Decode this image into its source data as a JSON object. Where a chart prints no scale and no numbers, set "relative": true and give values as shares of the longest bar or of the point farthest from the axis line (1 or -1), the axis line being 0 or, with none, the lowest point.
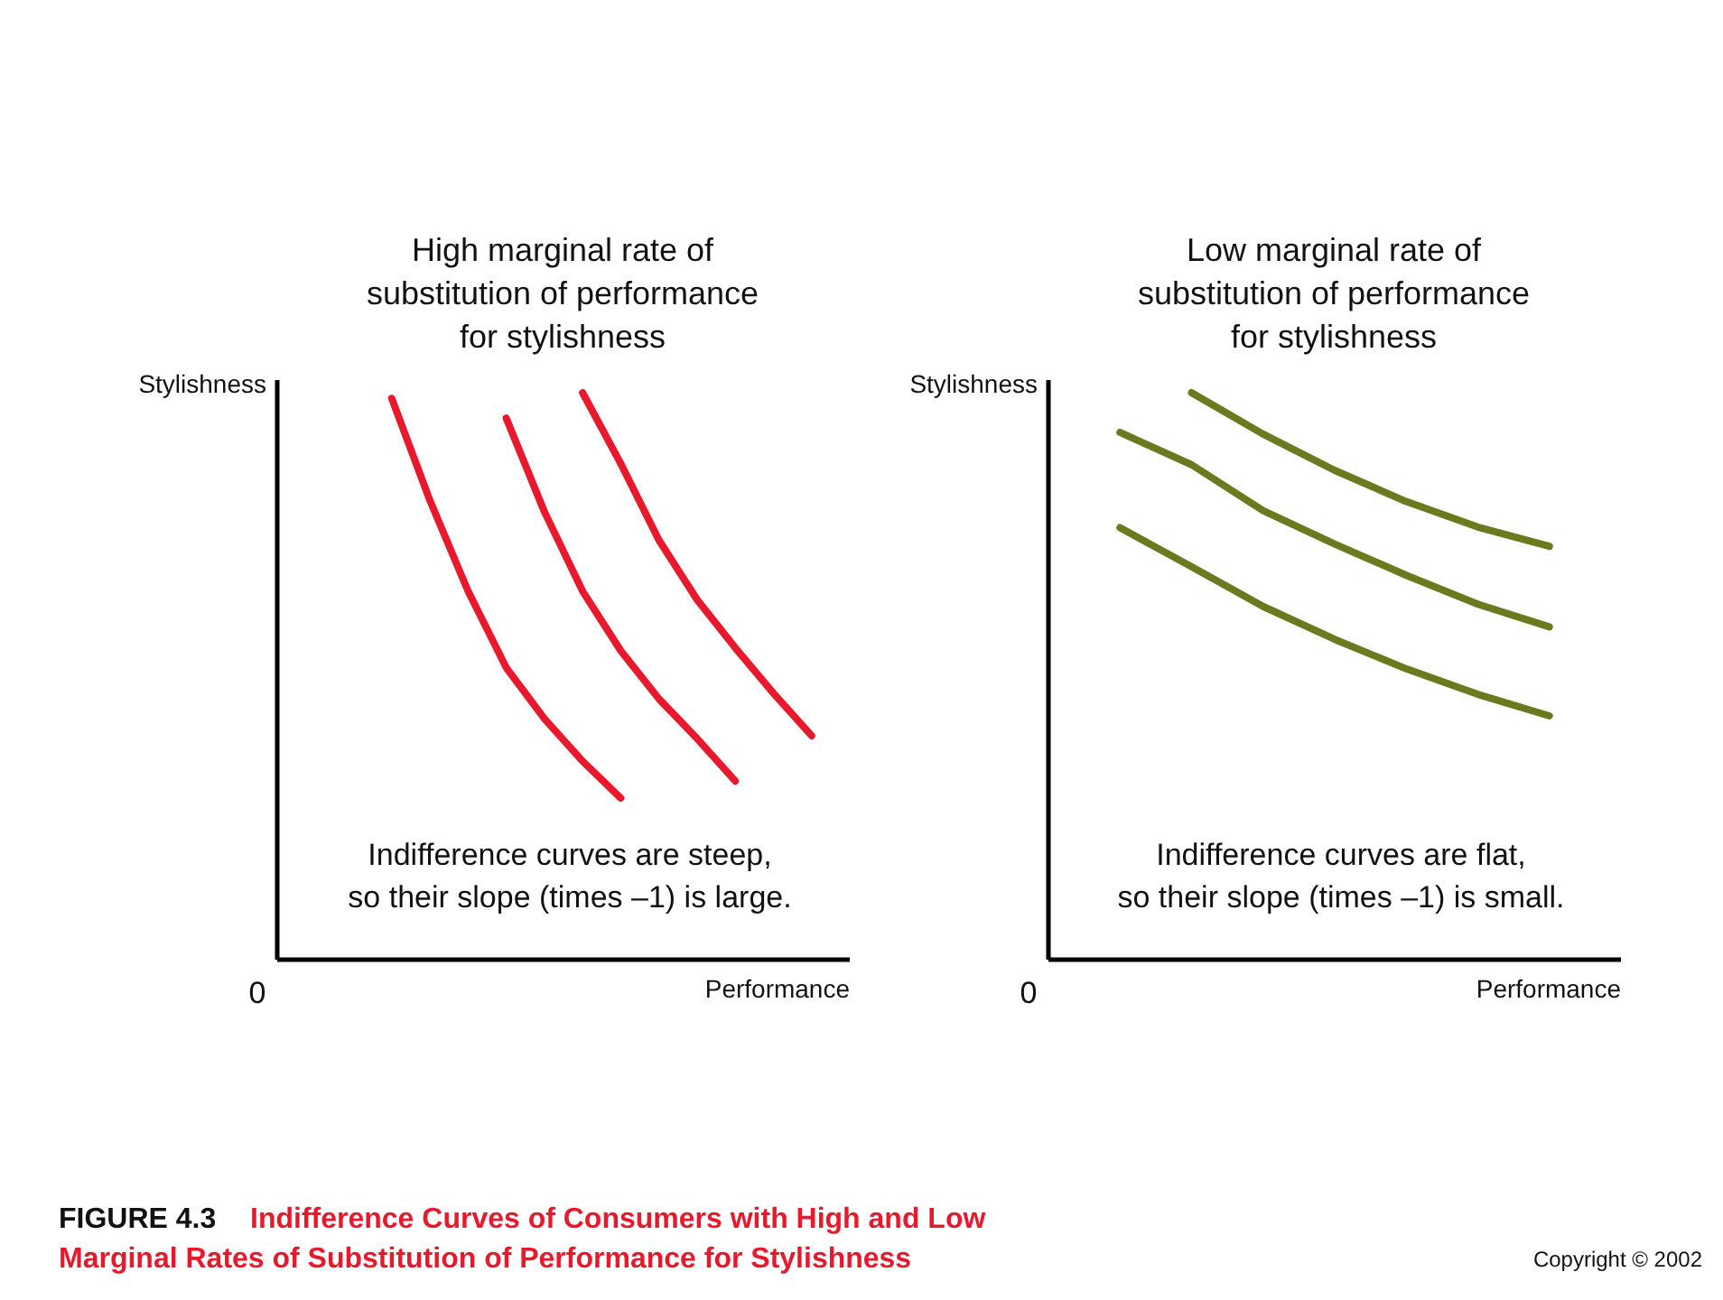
{
  "chart_data": [
    {
      "type": "line",
      "relative": true,
      "title": "High marginal rate of\nsubstitution of performance\nfor stylishness",
      "xlabel": "Performance",
      "ylabel": "Stylishness",
      "marker": "none",
      "line_style": "solid",
      "categories": [
        null,
        null,
        null,
        null,
        null,
        null,
        null,
        null,
        null,
        null,
        null,
        null,
        null,
        null
      ],
      "series": [
        {
          "color": "#e8192c",
          "values": [
            null,
            null,
            0.99,
            0.81,
            0.65,
            0.515,
            0.425,
            0.35,
            0.285,
            null,
            null,
            null,
            null,
            null
          ]
        },
        {
          "color": "#e8192c",
          "values": [
            null,
            null,
            null,
            null,
            null,
            0.955,
            0.79,
            0.65,
            0.545,
            0.46,
            0.39,
            0.315,
            null,
            null
          ]
        },
        {
          "color": "#e8192c",
          "values": [
            null,
            null,
            null,
            null,
            null,
            null,
            null,
            1,
            0.875,
            0.74,
            0.635,
            0.55,
            0.47,
            0.395
          ]
        }
      ],
      "annotations": [
        "Indifference curves are steep,\nso their slope (times –1) is large.",
        "0"
      ]
    },
    {
      "type": "line",
      "relative": true,
      "title": "Low marginal rate of\nsubstitution of performance\nfor stylishness",
      "xlabel": "Performance",
      "ylabel": "Stylishness",
      "marker": "none",
      "line_style": "solid",
      "categories": [
        null,
        null,
        null,
        null,
        null,
        null,
        null
      ],
      "series": [
        {
          "color": "#6b7a1f",
          "values": [
            null,
            1,
            0.927,
            0.863,
            0.808,
            0.763,
            0.729
          ]
        },
        {
          "color": "#6b7a1f",
          "values": [
            0.93,
            0.873,
            0.792,
            0.733,
            0.678,
            0.627,
            0.587
          ]
        },
        {
          "color": "#6b7a1f",
          "values": [
            0.762,
            0.693,
            0.623,
            0.565,
            0.513,
            0.468,
            0.43
          ]
        }
      ],
      "annotations": [
        "Indifference curves are flat,\nso their slope (times –1) is small.",
        "0"
      ]
    },
    {
      "type": "other",
      "title": "Indifference Curves of Consumers with High and Low\nMarginal Rates of Substitution of Performance for Stylishness",
      "annotations": [
        "FIGURE 4.3",
        "Copyright © 2002"
      ]
    }
  ]
}
